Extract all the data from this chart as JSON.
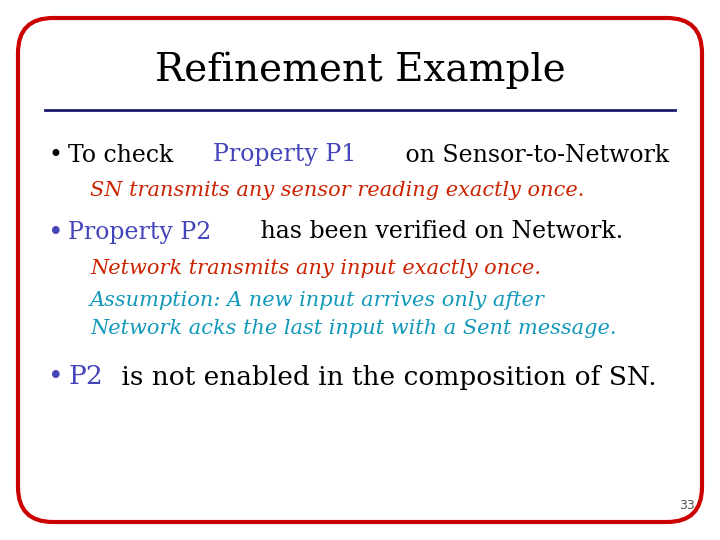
{
  "title": "Refinement Example",
  "title_color": "#000000",
  "title_fontsize": 28,
  "background_color": "#ffffff",
  "border_color": "#cc0000",
  "line_color": "#1a1a6e",
  "slide_number": "33",
  "bullet1_parts": [
    {
      "text": "To check ",
      "color": "#000000"
    },
    {
      "text": "Property P1",
      "color": "#4444bb"
    },
    {
      "text": " on Sensor-to-Network",
      "color": "#000000"
    }
  ],
  "bullet1_sub": {
    "text": "SN transmits any sensor reading exactly once.",
    "color": "#cc2200"
  },
  "bullet2_parts": [
    {
      "text": "Property P2",
      "color": "#4444bb"
    },
    {
      "text": " has been verified on Network.",
      "color": "#000000"
    }
  ],
  "bullet2_sub1": {
    "text": "Network transmits any input exactly once.",
    "color": "#cc2200"
  },
  "bullet2_sub2_line1": {
    "text": "Assumption: A new input arrives only after",
    "color": "#1199bb"
  },
  "bullet2_sub2_line2": {
    "text": "Network acks the last input with a Sent message.",
    "color": "#1199bb"
  },
  "bullet3_parts": [
    {
      "text": "P2",
      "color": "#4444bb"
    },
    {
      "text": " is not enabled in the composition of SN.",
      "color": "#000000"
    }
  ],
  "bullet_color": "#000000",
  "bullet2_color": "#4444bb",
  "bullet3_color": "#4444bb",
  "main_fontsize": 17,
  "sub_fontsize": 15,
  "bullet3_fontsize": 19
}
